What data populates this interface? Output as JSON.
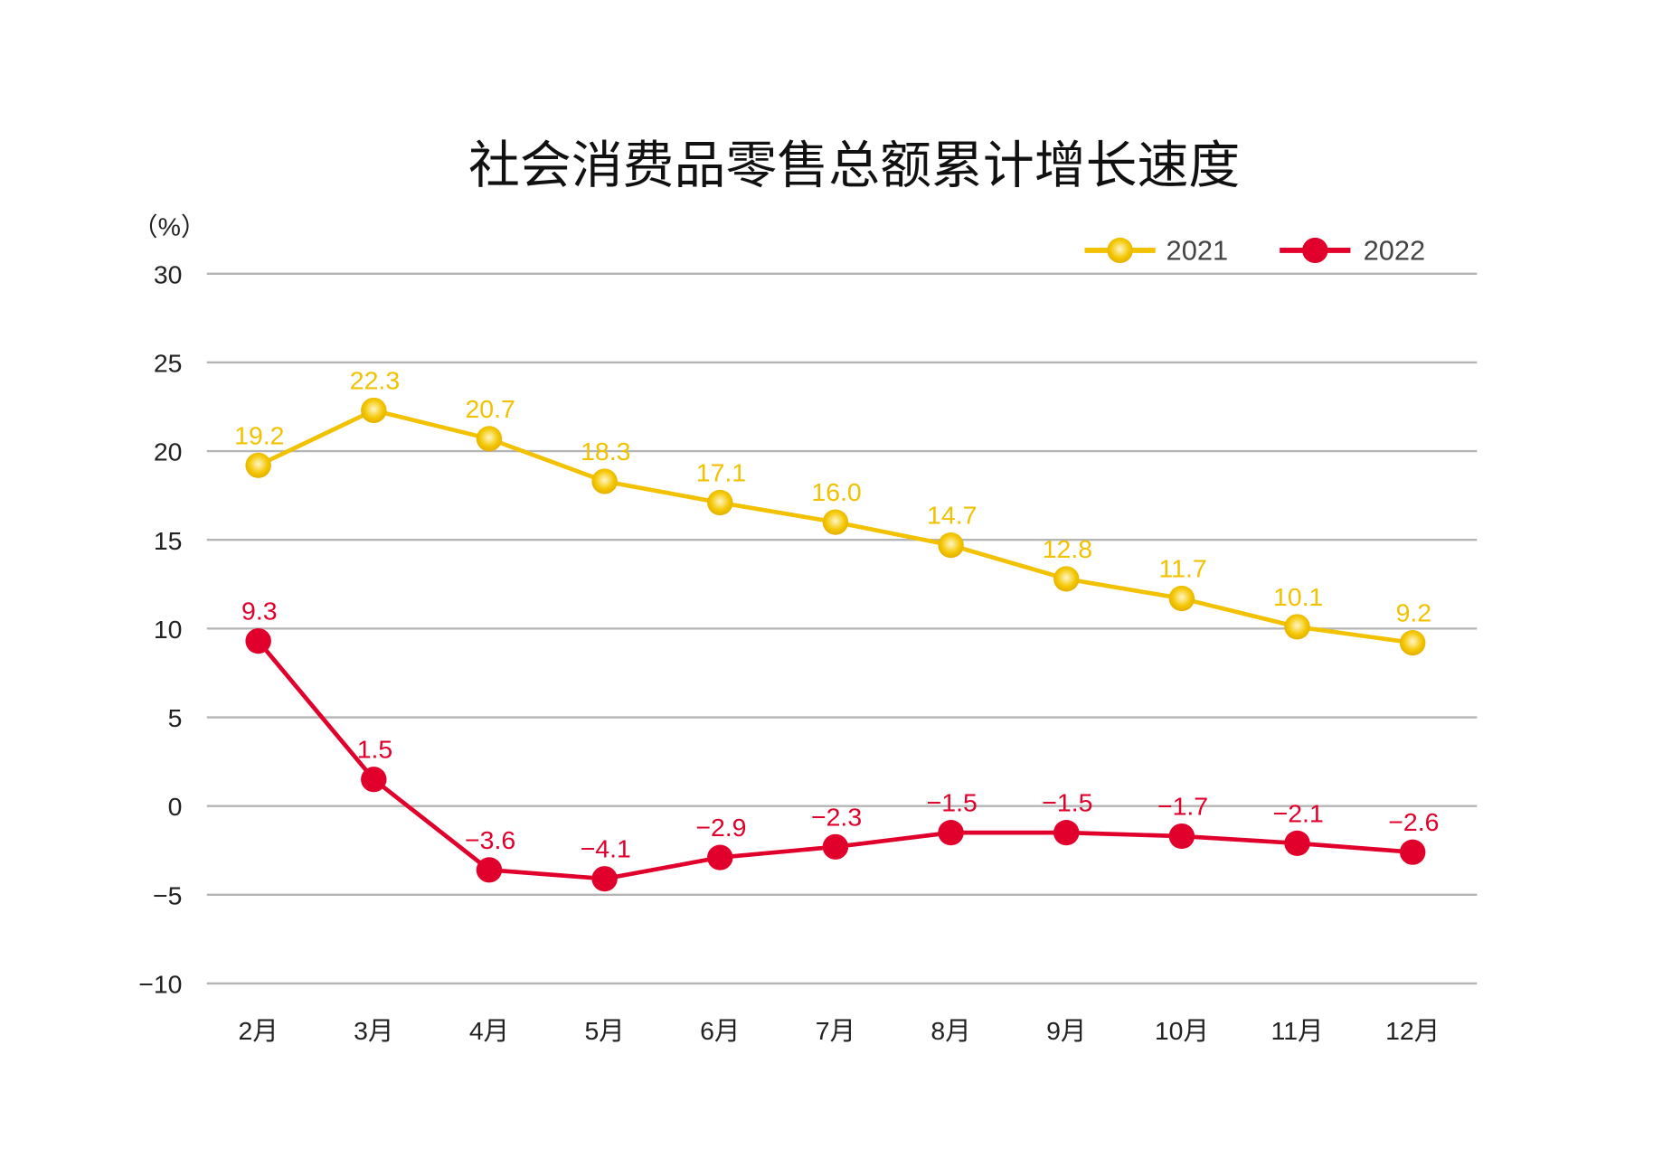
{
  "chart_data": {
    "type": "line",
    "title": "社会消费品零售总额累计增长速度",
    "ylabel": "（%）",
    "xlabel": "",
    "categories": [
      "2月",
      "3月",
      "4月",
      "5月",
      "6月",
      "7月",
      "8月",
      "9月",
      "10月",
      "11月",
      "12月"
    ],
    "ylim": [
      -10,
      30
    ],
    "yticks": [
      30,
      25,
      20,
      15,
      10,
      5,
      0,
      -5,
      -10
    ],
    "ytick_labels": [
      "30",
      "25",
      "20",
      "15",
      "10",
      "5",
      "0",
      "−5",
      "−10"
    ],
    "grid": true,
    "legend_position": "top-right",
    "series": [
      {
        "name": "2021",
        "color": "#f2c100",
        "values": [
          19.2,
          22.3,
          20.7,
          18.3,
          17.1,
          16.0,
          14.7,
          12.8,
          11.7,
          10.1,
          9.2
        ],
        "labels": [
          "19.2",
          "22.3",
          "20.7",
          "18.3",
          "17.1",
          "16.0",
          "14.7",
          "12.8",
          "11.7",
          "10.1",
          "9.2"
        ]
      },
      {
        "name": "2022",
        "color": "#e0002b",
        "values": [
          9.3,
          1.5,
          -3.6,
          -4.1,
          -2.9,
          -2.3,
          -1.5,
          -1.5,
          -1.7,
          -2.1,
          -2.6
        ],
        "labels": [
          "9.3",
          "1.5",
          "−3.6",
          "−4.1",
          "−2.9",
          "−2.3",
          "−1.5",
          "−1.5",
          "−1.7",
          "−2.1",
          "−2.6"
        ]
      }
    ]
  }
}
